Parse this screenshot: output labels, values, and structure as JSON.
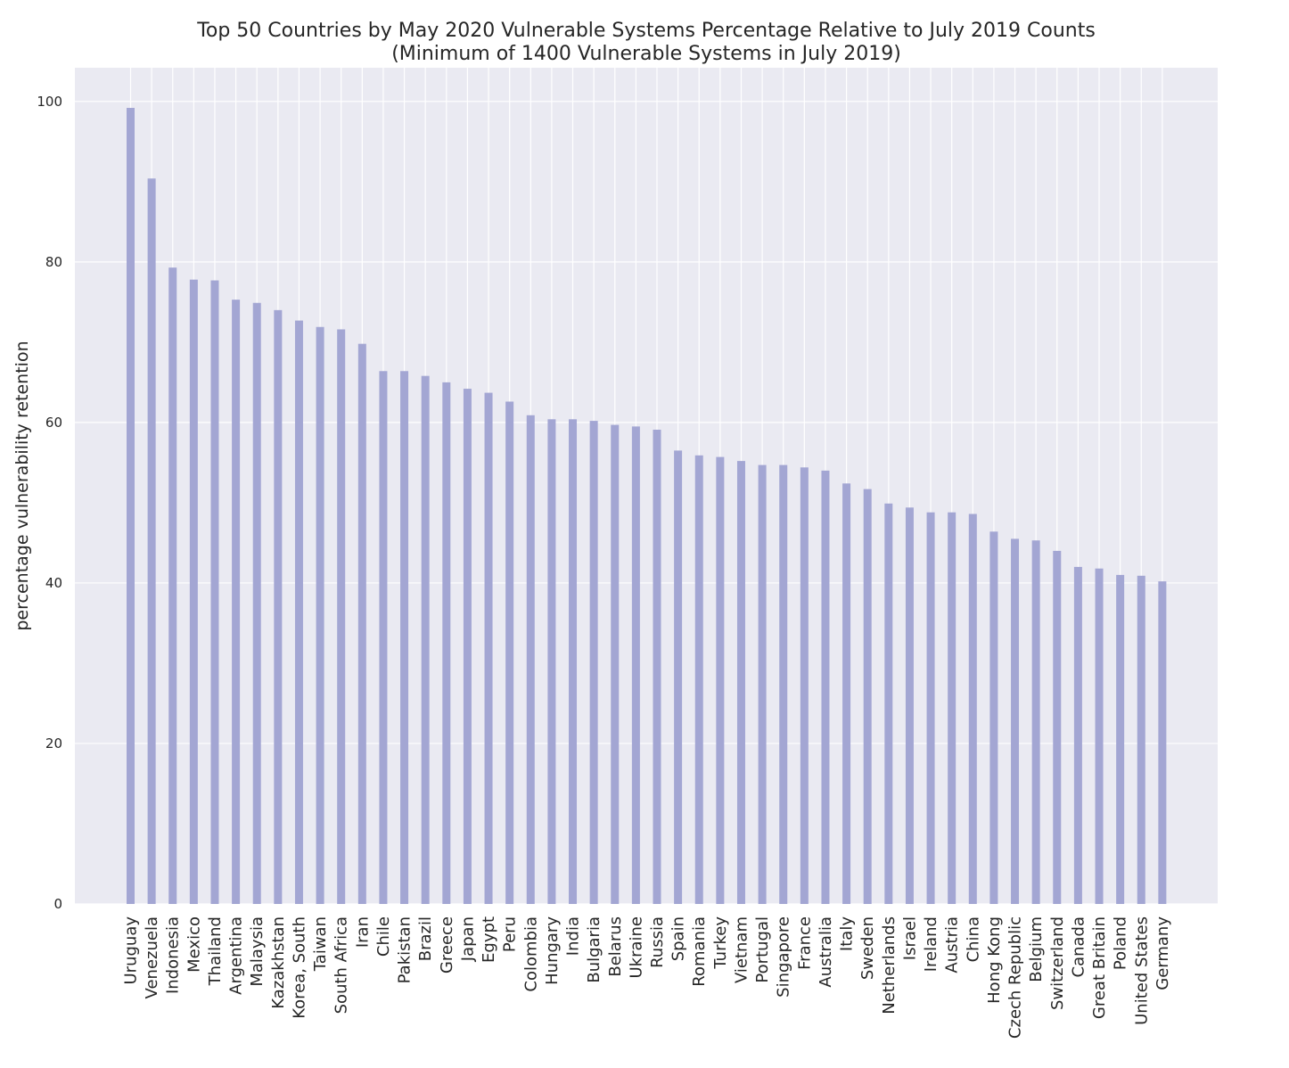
{
  "chart_data": {
    "type": "bar",
    "title": "Top 50 Countries by May 2020 Vulnerable Systems Percentage Relative to July 2019 Counts",
    "subtitle": "(Minimum of 1400 Vulnerable Systems in July 2019)",
    "xlabel": "",
    "ylabel": "percentage vulnerability retention",
    "ylim": [
      0,
      104.2
    ],
    "yticks": [
      0,
      20,
      40,
      60,
      80,
      100
    ],
    "grid": true,
    "bar_color": "#a3a6d3",
    "background_color": "#eaeaf2",
    "grid_color": "#ffffff",
    "categories": [
      "Uruguay",
      "Venezuela",
      "Indonesia",
      "Mexico",
      "Thailand",
      "Argentina",
      "Malaysia",
      "Kazakhstan",
      "Korea, South",
      "Taiwan",
      "South Africa",
      "Iran",
      "Chile",
      "Pakistan",
      "Brazil",
      "Greece",
      "Japan",
      "Egypt",
      "Peru",
      "Colombia",
      "Hungary",
      "India",
      "Bulgaria",
      "Belarus",
      "Ukraine",
      "Russia",
      "Spain",
      "Romania",
      "Turkey",
      "Vietnam",
      "Portugal",
      "Singapore",
      "France",
      "Australia",
      "Italy",
      "Sweden",
      "Netherlands",
      "Israel",
      "Ireland",
      "Austria",
      "China",
      "Hong Kong",
      "Czech Republic",
      "Belgium",
      "Switzerland",
      "Canada",
      "Great Britain",
      "Poland",
      "United States",
      "Germany"
    ],
    "values": [
      99.2,
      90.4,
      79.3,
      77.8,
      77.7,
      75.3,
      74.9,
      74.0,
      72.7,
      71.9,
      71.6,
      69.8,
      66.4,
      66.4,
      65.8,
      65.0,
      64.2,
      63.7,
      62.6,
      60.9,
      60.4,
      60.4,
      60.2,
      59.7,
      59.5,
      59.1,
      56.5,
      55.9,
      55.7,
      55.2,
      54.7,
      54.7,
      54.4,
      54.0,
      52.4,
      51.7,
      49.9,
      49.4,
      48.8,
      48.8,
      48.6,
      46.4,
      45.5,
      45.3,
      44.0,
      42.0,
      41.8,
      41.0,
      40.9,
      40.2
    ]
  }
}
